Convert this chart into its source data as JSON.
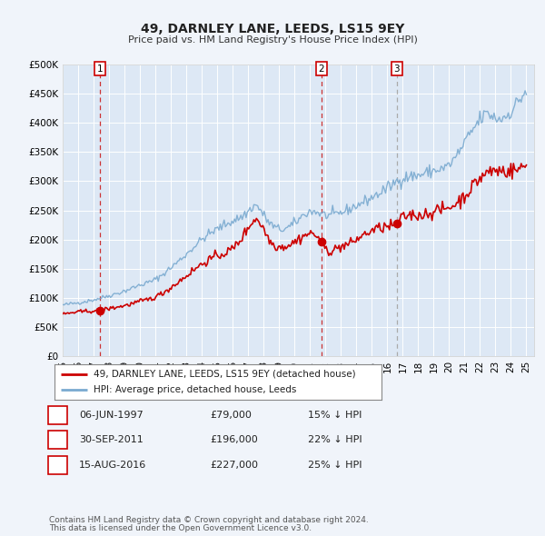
{
  "title": "49, DARNLEY LANE, LEEDS, LS15 9EY",
  "subtitle": "Price paid vs. HM Land Registry's House Price Index (HPI)",
  "bg_color": "#f0f4fa",
  "plot_bg_color": "#dde8f5",
  "grid_color": "#ffffff",
  "hpi_color": "#7aaad0",
  "price_color": "#cc0000",
  "marker_color": "#cc0000",
  "dashed_red": "#cc3333",
  "dashed_gray": "#aaaaaa",
  "ylim": [
    0,
    500000
  ],
  "yticks": [
    0,
    50000,
    100000,
    150000,
    200000,
    250000,
    300000,
    350000,
    400000,
    450000,
    500000
  ],
  "ytick_labels": [
    "£0",
    "£50K",
    "£100K",
    "£150K",
    "£200K",
    "£250K",
    "£300K",
    "£350K",
    "£400K",
    "£450K",
    "£500K"
  ],
  "transactions": [
    {
      "label": "1",
      "date": 1997.43,
      "price": 79000,
      "line_color": "#cc3333"
    },
    {
      "label": "2",
      "date": 2011.75,
      "price": 196000,
      "line_color": "#cc3333"
    },
    {
      "label": "3",
      "date": 2016.62,
      "price": 227000,
      "line_color": "#aaaaaa"
    }
  ],
  "legend_entries": [
    "49, DARNLEY LANE, LEEDS, LS15 9EY (detached house)",
    "HPI: Average price, detached house, Leeds"
  ],
  "table_rows": [
    {
      "num": "1",
      "date": "06-JUN-1997",
      "price": "£79,000",
      "hpi": "15% ↓ HPI"
    },
    {
      "num": "2",
      "date": "30-SEP-2011",
      "price": "£196,000",
      "hpi": "22% ↓ HPI"
    },
    {
      "num": "3",
      "date": "15-AUG-2016",
      "price": "£227,000",
      "hpi": "25% ↓ HPI"
    }
  ],
  "footnote1": "Contains HM Land Registry data © Crown copyright and database right 2024.",
  "footnote2": "This data is licensed under the Open Government Licence v3.0."
}
